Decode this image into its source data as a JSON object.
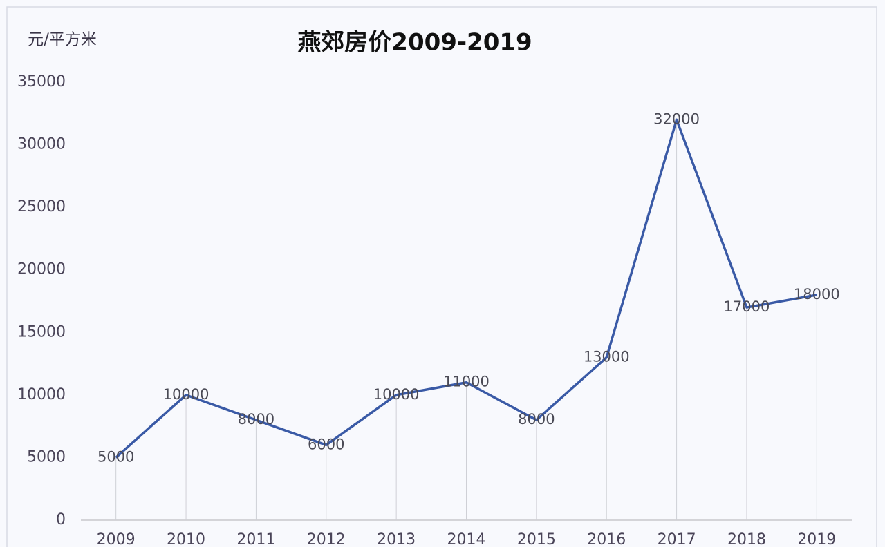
{
  "chart_data": {
    "type": "line",
    "title": "燕郊房价2009-2019",
    "y_label": "元/平方米",
    "categories": [
      "2009",
      "2010",
      "2011",
      "2012",
      "2013",
      "2014",
      "2015",
      "2016",
      "2017",
      "2018",
      "2019"
    ],
    "series": [
      {
        "name": "燕郊房价",
        "color": "#3a5aa6",
        "values": [
          5000,
          10000,
          8000,
          6000,
          10000,
          11000,
          8000,
          13000,
          32000,
          17000,
          18000
        ]
      }
    ],
    "ylim": [
      0,
      35000
    ],
    "yticks": [
      0,
      5000,
      10000,
      15000,
      20000,
      25000,
      30000,
      35000
    ],
    "grid": false
  }
}
